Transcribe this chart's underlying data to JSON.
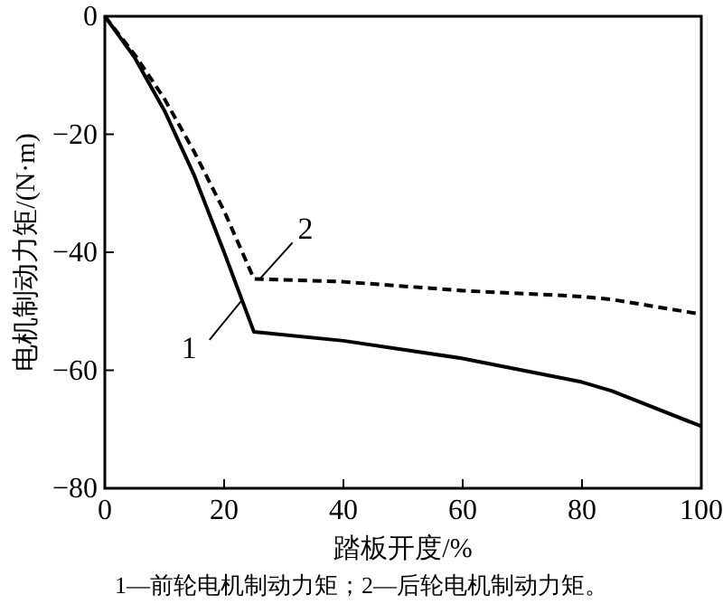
{
  "chart_data": {
    "type": "line",
    "xlabel": "踏板开度/%",
    "ylabel": "电机制动力矩/(N·m)",
    "xlim": [
      0,
      100
    ],
    "ylim": [
      -80,
      0
    ],
    "xticks": [
      0,
      20,
      40,
      60,
      80,
      100
    ],
    "yticks": [
      -80,
      -60,
      -40,
      -20,
      0
    ],
    "grid": false,
    "marker": "none",
    "series": [
      {
        "name": "1",
        "color": "#000000",
        "line_style": "solid",
        "x": [
          0,
          5,
          10,
          15,
          20,
          25,
          40,
          60,
          80,
          85,
          100
        ],
        "values": [
          0,
          -7,
          -16,
          -27,
          -40,
          -53.5,
          -55,
          -58,
          -62,
          -63.5,
          -69.5
        ]
      },
      {
        "name": "2",
        "color": "#000000",
        "line_style": "dashed",
        "x": [
          0,
          5,
          10,
          15,
          20,
          25,
          40,
          60,
          80,
          85,
          100
        ],
        "values": [
          0,
          -6.5,
          -14,
          -23,
          -33,
          -44.5,
          -45,
          -46.5,
          -47.5,
          -48,
          -50.5
        ]
      }
    ],
    "annotations": [
      "1—前轮电机制动力矩；2—后轮电机制动力矩。"
    ]
  }
}
